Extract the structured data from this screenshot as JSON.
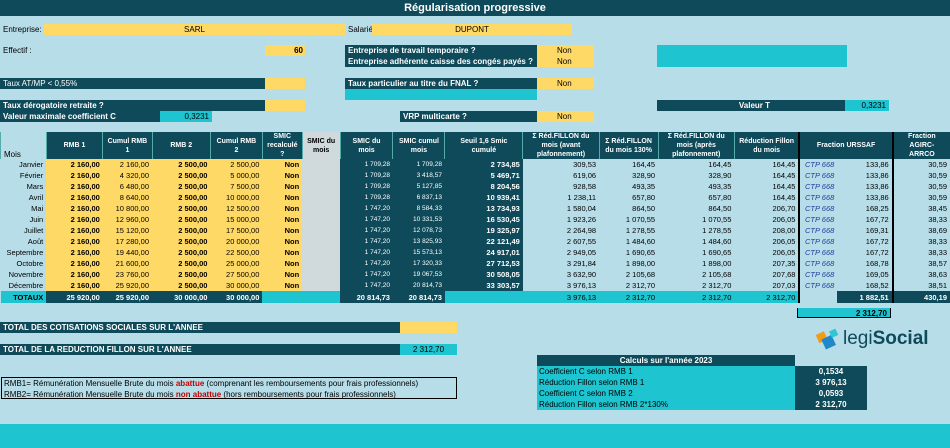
{
  "title": "Régularisation progressive",
  "header": {
    "entreprise_label": "Entreprise:",
    "entreprise_value": "SARL",
    "salarie_label": "Salarié",
    "salarie_value": "DUPONT",
    "effectif_label": "Effectif :",
    "effectif_value": "60",
    "taux_atmp_label": "Taux AT/MP < 0,55%",
    "taux_derog_label": "Taux dérogatoire retraite ?",
    "valeur_max_label": "Valeur maximale coefficient C",
    "valeur_max_value": "0,3231",
    "ett_label": "Entreprise de travail temporaire ?",
    "ett_value": "Non",
    "conges_label": "Entreprise adhérente caisse des congés payés ?",
    "conges_value": "Non",
    "fnal_label": "Taux particulier au titre du FNAL ?",
    "fnal_value": "Non",
    "vrp_label": "VRP multicarte ?",
    "vrp_value": "Non",
    "valeur_t_label": "Valeur T",
    "valeur_t_value": "0,3231"
  },
  "table": {
    "headers": [
      "Mois",
      "RMB 1",
      "Cumul RMB 1",
      "RMB 2",
      "Cumul RMB 2",
      "SMIC recalculé ?",
      "SMIC du mois",
      "SMIC du mois",
      "SMIC cumul mois",
      "Seuil 1,6 Smic cumulé",
      "Σ Réd.FILLON du mois (avant plafonnement)",
      "Σ Réd.FILLON du mois 130%",
      "Σ Réd.FILLON du mois (après plafonnement)",
      "Réduction Fillon du mois",
      "Fraction URSSAF",
      "",
      "Fraction AGIRC-ARRCO"
    ],
    "rows": [
      [
        "Janvier",
        "2 160,00",
        "2 160,00",
        "2 500,00",
        "2 500,00",
        "Non",
        "",
        "1 709,28",
        "1 709,28",
        "2 734,85",
        "309,53",
        "164,45",
        "164,45",
        "164,45",
        "CTP 668",
        "133,86",
        "30,59"
      ],
      [
        "Février",
        "2 160,00",
        "4 320,00",
        "2 500,00",
        "5 000,00",
        "Non",
        "",
        "1 709,28",
        "3 418,57",
        "5 469,71",
        "619,06",
        "328,90",
        "328,90",
        "164,45",
        "CTP 668",
        "133,86",
        "30,59"
      ],
      [
        "Mars",
        "2 160,00",
        "6 480,00",
        "2 500,00",
        "7 500,00",
        "Non",
        "",
        "1 709,28",
        "5 127,85",
        "8 204,56",
        "928,58",
        "493,35",
        "493,35",
        "164,45",
        "CTP 668",
        "133,86",
        "30,59"
      ],
      [
        "Avril",
        "2 160,00",
        "8 640,00",
        "2 500,00",
        "10 000,00",
        "Non",
        "",
        "1 709,28",
        "6 837,13",
        "10 939,41",
        "1 238,11",
        "657,80",
        "657,80",
        "164,45",
        "CTP 668",
        "133,86",
        "30,59"
      ],
      [
        "Mai",
        "2 160,00",
        "10 800,00",
        "2 500,00",
        "12 500,00",
        "Non",
        "",
        "1 747,20",
        "8 584,33",
        "13 734,93",
        "1 580,04",
        "864,50",
        "864,50",
        "206,70",
        "CTP 668",
        "168,25",
        "38,45"
      ],
      [
        "Juin",
        "2 160,00",
        "12 960,00",
        "2 500,00",
        "15 000,00",
        "Non",
        "",
        "1 747,20",
        "10 331,53",
        "16 530,45",
        "1 923,26",
        "1 070,55",
        "1 070,55",
        "206,05",
        "CTP 668",
        "167,72",
        "38,33"
      ],
      [
        "Juillet",
        "2 160,00",
        "15 120,00",
        "2 500,00",
        "17 500,00",
        "Non",
        "",
        "1 747,20",
        "12 078,73",
        "19 325,97",
        "2 264,98",
        "1 278,55",
        "1 278,55",
        "208,00",
        "CTP 668",
        "169,31",
        "38,69"
      ],
      [
        "Août",
        "2 160,00",
        "17 280,00",
        "2 500,00",
        "20 000,00",
        "Non",
        "",
        "1 747,20",
        "13 825,93",
        "22 121,49",
        "2 607,55",
        "1 484,60",
        "1 484,60",
        "206,05",
        "CTP 668",
        "167,72",
        "38,33"
      ],
      [
        "Septembre",
        "2 160,00",
        "19 440,00",
        "2 500,00",
        "22 500,00",
        "Non",
        "",
        "1 747,20",
        "15 573,13",
        "24 917,01",
        "2 949,05",
        "1 690,65",
        "1 690,65",
        "206,05",
        "CTP 668",
        "167,72",
        "38,33"
      ],
      [
        "Octobre",
        "2 160,00",
        "21 600,00",
        "2 500,00",
        "25 000,00",
        "Non",
        "",
        "1 747,20",
        "17 320,33",
        "27 712,53",
        "3 291,84",
        "1 898,00",
        "1 898,00",
        "207,35",
        "CTP 668",
        "168,78",
        "38,57"
      ],
      [
        "Novembre",
        "2 160,00",
        "23 760,00",
        "2 500,00",
        "27 500,00",
        "Non",
        "",
        "1 747,20",
        "19 067,53",
        "30 508,05",
        "3 632,90",
        "2 105,68",
        "2 105,68",
        "207,68",
        "CTP 668",
        "169,05",
        "38,63"
      ],
      [
        "Décembre",
        "2 160,00",
        "25 920,00",
        "2 500,00",
        "30 000,00",
        "Non",
        "",
        "1 747,20",
        "20 814,73",
        "33 303,57",
        "3 976,13",
        "2 312,70",
        "2 312,70",
        "207,03",
        "CTP 668",
        "168,52",
        "38,51"
      ]
    ],
    "totals_label": "TOTAUX",
    "totals": {
      "rmb1": "25 920,00",
      "cumul_rmb1": "25 920,00",
      "rmb2": "30 000,00",
      "cumul_rmb2": "30 000,00",
      "smic_mois": "20 814,73",
      "smic_cumul": "20 814,73",
      "avant_plaf": "3 976,13",
      "r130": "2 312,70",
      "apres_plaf": "2 312,70",
      "red_mois": "2 312,70",
      "urssaf": "1 882,51",
      "agirc": "430,19",
      "urssaf_total": "2 312,70"
    }
  },
  "totals_section": {
    "cotisations_label": "TOTAL DES COTISATIONS SOCIALES SUR L'ANNEE",
    "reduction_label": "TOTAL DE LA REDUCTION FILLON SUR L'ANNEE",
    "reduction_value": "2 312,70"
  },
  "notes": {
    "rmb1_prefix": "RMB1= Rémunération Mensuelle Brute du mois ",
    "rmb1_emph": "abattue",
    "rmb1_suffix": " (comprenant les remboursements pour frais professionnels)",
    "rmb2_prefix": "RMB2= Rémunération Mensuelle Brute du mois ",
    "rmb2_emph": "non abattue",
    "rmb2_suffix": " (hors remboursements pour frais professionnels)"
  },
  "calculs": {
    "title": "Calculs sur l'année 2023",
    "rows": [
      {
        "label": "Coefficient C selon RMB 1",
        "value": "0,1534"
      },
      {
        "label": "Réduction Fillon selon RMB 1",
        "value": "3 976,13"
      },
      {
        "label": "Coefficient C selon RMB 2",
        "value": "0,0593"
      },
      {
        "label": "Réduction Fillon selon RMB 2*130%",
        "value": "2 312,70"
      }
    ]
  },
  "logo": {
    "text_prefix": "legi",
    "text_suffix": "Social"
  },
  "colors": {
    "dark": "#0e4a5a",
    "yellow": "#ffd966",
    "teal": "#1ec4cf",
    "background": "#b7dde8",
    "red": "#c00000"
  }
}
